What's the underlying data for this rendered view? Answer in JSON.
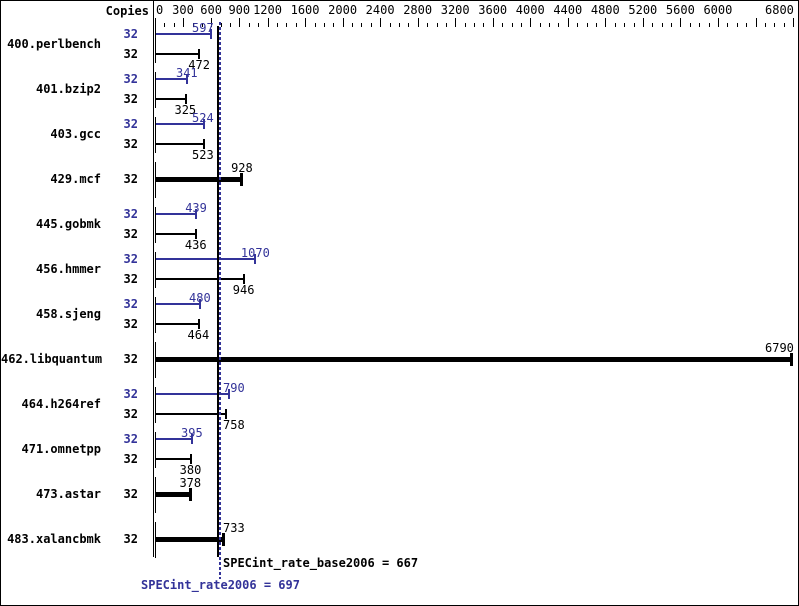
{
  "header": {
    "copies_label": "Copies"
  },
  "colors": {
    "peak_blue": "#333399",
    "base_black": "#000000"
  },
  "chart_data": {
    "type": "bar",
    "orientation": "horizontal",
    "x_axis": {
      "min": 0,
      "max": 6800,
      "minor_step": 100,
      "tick_labels": [
        0,
        300,
        600,
        900,
        1200,
        1600,
        2000,
        2400,
        2800,
        3200,
        3600,
        4000,
        4400,
        4800,
        5200,
        5600,
        6000,
        6800
      ],
      "unlabeled_major_ticks": [
        6400
      ]
    },
    "benchmarks": [
      {
        "name": "400.perlbench",
        "copies_peak": 32,
        "copies_base": 32,
        "peak": 597,
        "base": 472
      },
      {
        "name": "401.bzip2",
        "copies_peak": 32,
        "copies_base": 32,
        "peak": 341,
        "base": 325
      },
      {
        "name": "403.gcc",
        "copies_peak": 32,
        "copies_base": 32,
        "peak": 524,
        "base": 523
      },
      {
        "name": "429.mcf",
        "copies_base": 32,
        "peak": null,
        "base": 928
      },
      {
        "name": "445.gobmk",
        "copies_peak": 32,
        "copies_base": 32,
        "peak": 439,
        "base": 436
      },
      {
        "name": "456.hmmer",
        "copies_peak": 32,
        "copies_base": 32,
        "peak": 1070,
        "base": 946
      },
      {
        "name": "458.sjeng",
        "copies_peak": 32,
        "copies_base": 32,
        "peak": 480,
        "base": 464
      },
      {
        "name": "462.libquantum",
        "copies_base": 32,
        "peak": null,
        "base": 6790
      },
      {
        "name": "464.h264ref",
        "copies_peak": 32,
        "copies_base": 32,
        "peak": 790,
        "base": 758
      },
      {
        "name": "471.omnetpp",
        "copies_peak": 32,
        "copies_base": 32,
        "peak": 395,
        "base": 380
      },
      {
        "name": "473.astar",
        "copies_base": 32,
        "peak": null,
        "base": 378
      },
      {
        "name": "483.xalancbmk",
        "copies_base": 32,
        "peak": null,
        "base": 733
      }
    ],
    "references": {
      "base": {
        "text": "SPECint_rate_base2006 = 667",
        "value": 667
      },
      "peak": {
        "text": "SPECint_rate2006 = 697",
        "value": 697
      }
    }
  }
}
